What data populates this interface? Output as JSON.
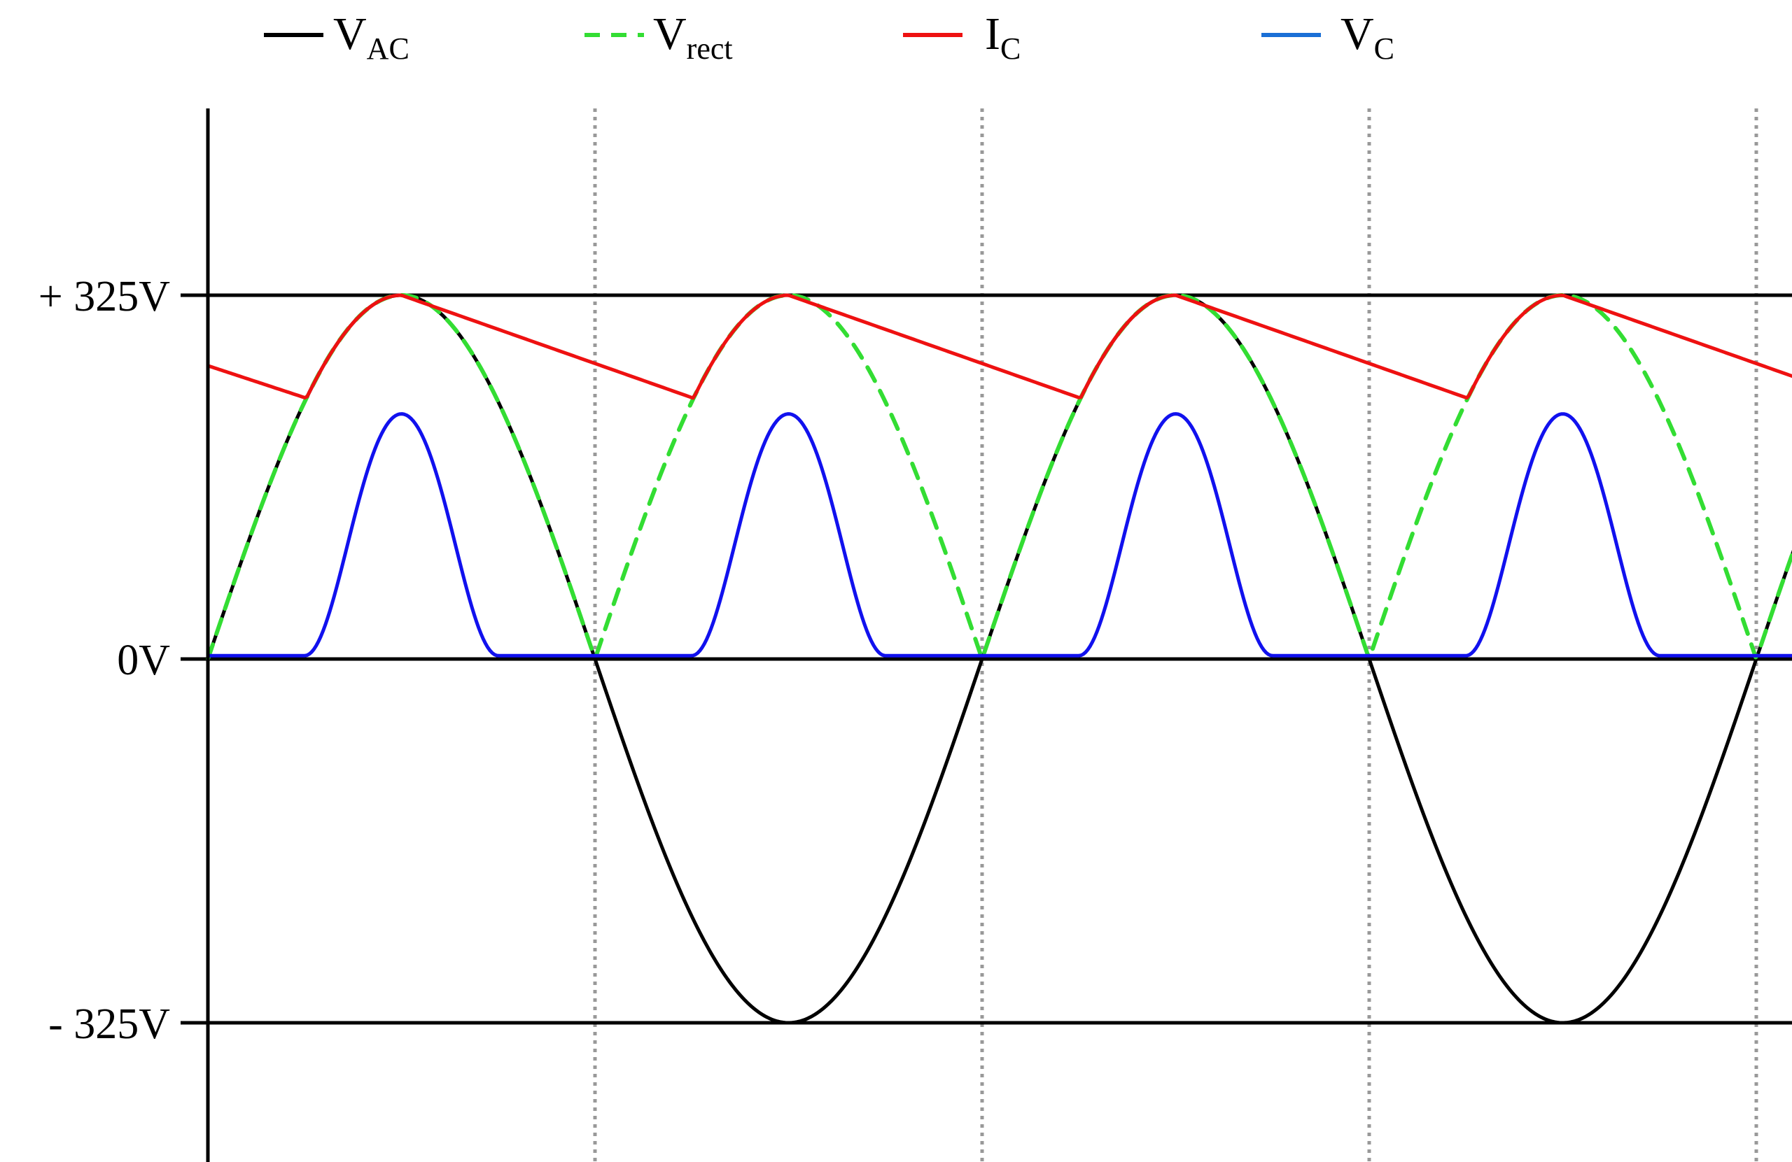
{
  "chart_data": {
    "type": "line",
    "x_range_periods": [
      0,
      4.08
    ],
    "ylim": [
      -325,
      325
    ],
    "y_ticks": [
      {
        "value": 325,
        "label": "+ 325V"
      },
      {
        "value": 0,
        "label": "0V"
      },
      {
        "value": -325,
        "label": "- 325V"
      }
    ],
    "x_gridlines_half_periods": [
      0.5,
      1,
      1.5,
      2,
      2.5,
      3,
      3.5
    ],
    "legend_position": "top",
    "series": [
      {
        "key": "vac",
        "name_main": "V",
        "name_sub": "AC",
        "color": "#000000",
        "style": "solid",
        "description": "AC input sine wave, amplitude 325 V"
      },
      {
        "key": "vrect",
        "name_main": "V",
        "name_sub": "rect",
        "color": "#33dd33",
        "style": "dashed",
        "description": "Full-wave rectified voltage |V_AC|"
      },
      {
        "key": "ic",
        "name_main": "I",
        "name_sub": "C",
        "color": "#ee1111",
        "style": "solid",
        "description": "Ripple: follows peak then decays linearly to ~233 V",
        "decay_min_value": 233,
        "start_value": 262
      },
      {
        "key": "vc",
        "name_main": "V",
        "name_sub": "C",
        "color": "#1111ee",
        "legend_color": "#1a6fd6",
        "style": "solid",
        "description": "Charging pulses near each peak, peak ~219 V",
        "pulse_peak": 219,
        "baseline": 3
      }
    ]
  }
}
